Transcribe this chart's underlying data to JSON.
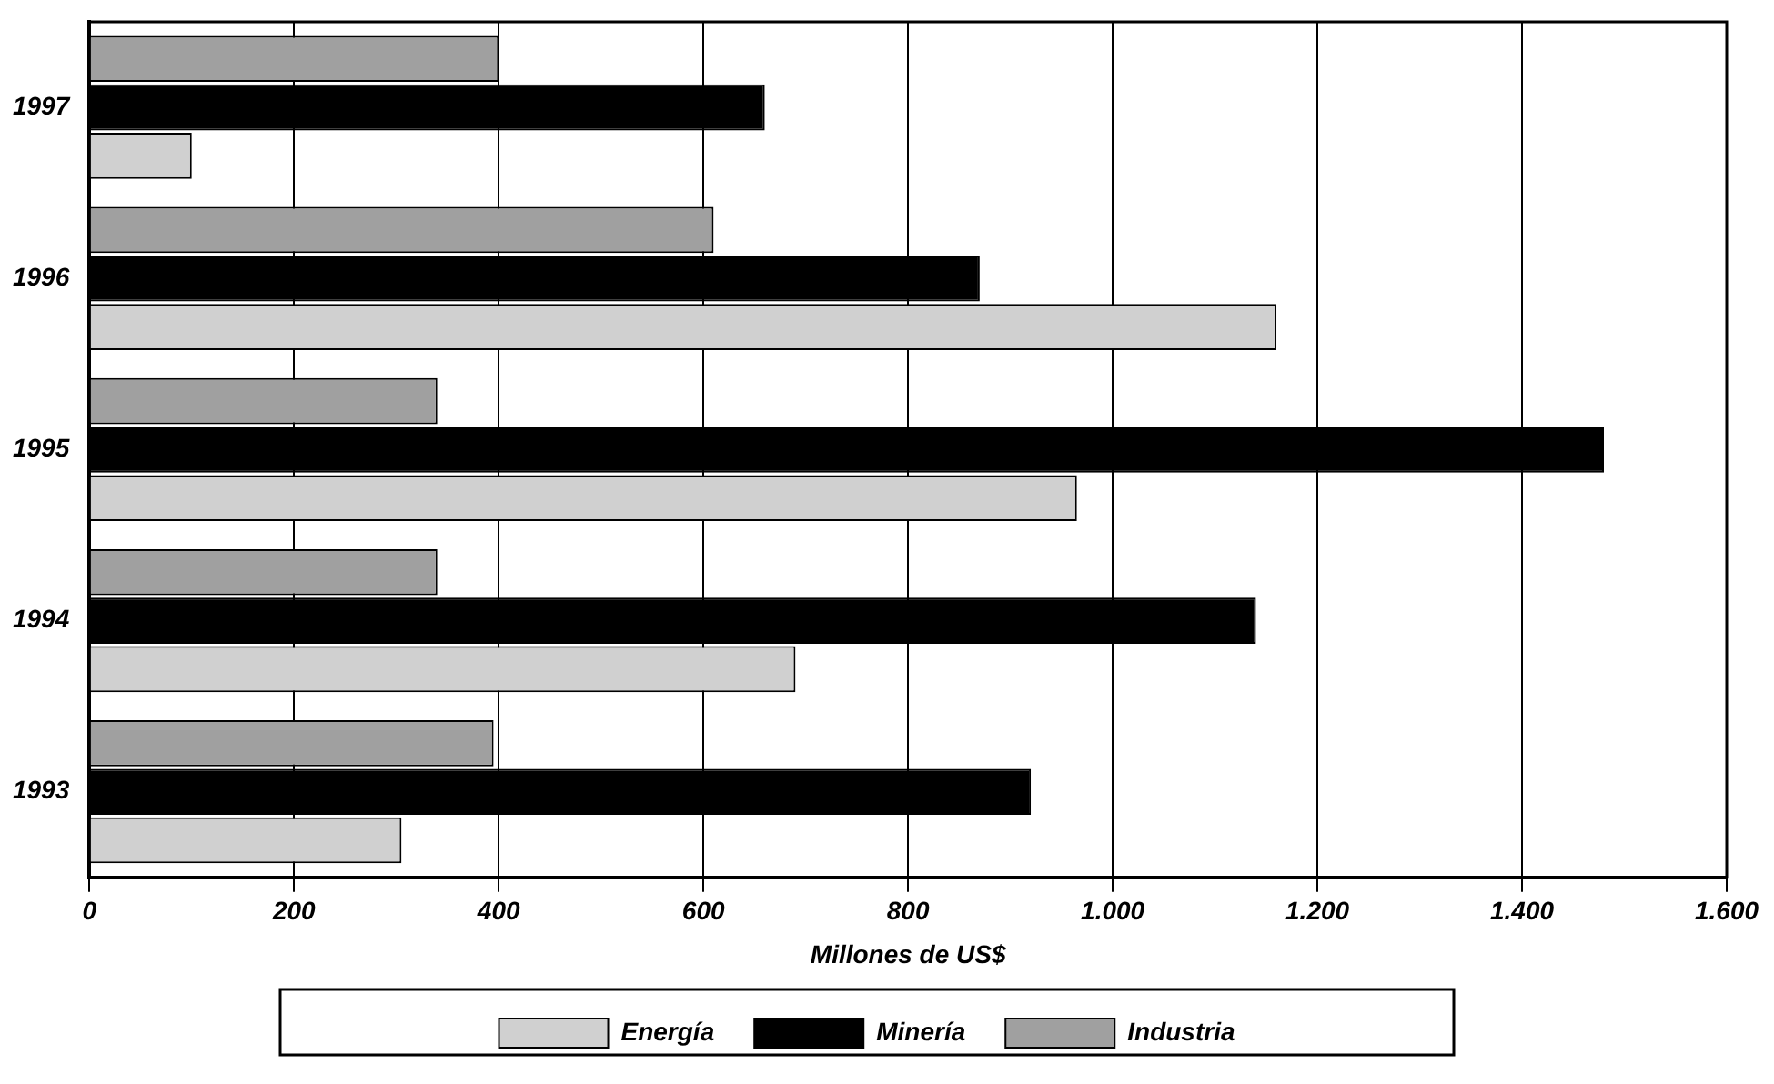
{
  "chart_data": {
    "type": "bar",
    "orientation": "horizontal",
    "xlabel": "Millones de US$",
    "categories": [
      "1997",
      "1996",
      "1995",
      "1994",
      "1993"
    ],
    "series": [
      {
        "name": "Industria",
        "color": "#a0a0a0",
        "values": [
          400,
          610,
          340,
          340,
          395
        ]
      },
      {
        "name": "Minería",
        "color": "#000000",
        "values": [
          660,
          870,
          1480,
          1140,
          920
        ]
      },
      {
        "name": "Energía",
        "color": "#d0d0d0",
        "values": [
          100,
          1160,
          965,
          690,
          305
        ]
      }
    ],
    "xlim": [
      0,
      1600
    ],
    "xticks": [
      0,
      200,
      400,
      600,
      800,
      {
        "value": 1000,
        "label": "1.000"
      },
      {
        "value": 1200,
        "label": "1.200"
      },
      {
        "value": 1400,
        "label": "1.400"
      },
      {
        "value": 1600,
        "label": "1.600"
      }
    ],
    "grid": "x",
    "legend": "bottom"
  }
}
